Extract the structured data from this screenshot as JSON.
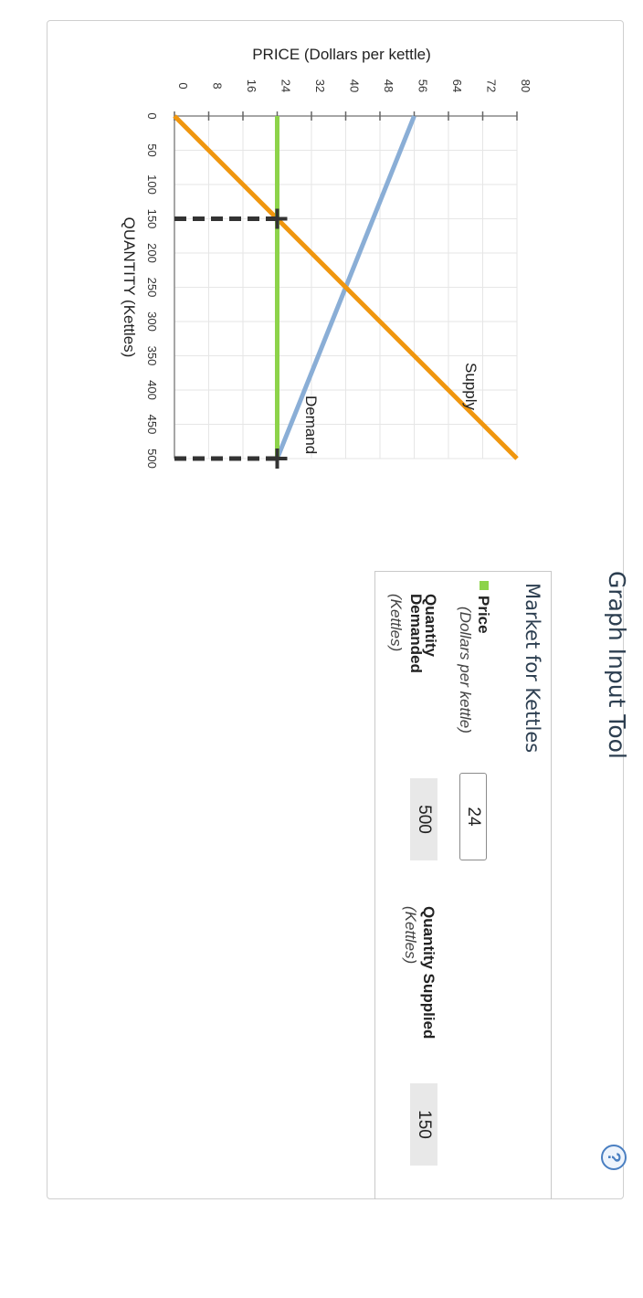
{
  "panel": {
    "tool_title": "Graph Input Tool",
    "help_label": "?",
    "table_title": "Market for Kettles",
    "price_label": "Price",
    "price_unit": "(Dollars per kettle)",
    "price_value": "24",
    "qd_label": "Quantity Demanded",
    "qd_unit": "(Kettles)",
    "qd_value": "500",
    "qs_label": "Quantity Supplied",
    "qs_unit": "(Kettles)",
    "qs_value": "150"
  },
  "chart_data": {
    "type": "line",
    "xlabel": "QUANTITY (Kettles)",
    "ylabel": "PRICE (Dollars per kettle)",
    "xlim": [
      0,
      500
    ],
    "ylim": [
      0,
      80
    ],
    "x_ticks": [
      0,
      50,
      100,
      150,
      200,
      250,
      300,
      350,
      400,
      450,
      500
    ],
    "y_ticks": [
      0,
      8,
      16,
      24,
      32,
      40,
      48,
      56,
      64,
      72,
      80
    ],
    "grid": true,
    "orientation": "rotated 90 degrees clockwise",
    "series": [
      {
        "name": "Supply",
        "color": "#f0960e",
        "points": [
          [
            0,
            0
          ],
          [
            500,
            80
          ]
        ]
      },
      {
        "name": "Demand",
        "color": "#8aaed6",
        "points": [
          [
            0,
            56
          ],
          [
            500,
            24
          ]
        ]
      }
    ],
    "price_line": {
      "value": 24,
      "color": "#8dd34a"
    },
    "markers": [
      {
        "x": 150,
        "y": 24,
        "color": "#333333"
      },
      {
        "x": 500,
        "y": 24,
        "color": "#333333"
      }
    ]
  }
}
